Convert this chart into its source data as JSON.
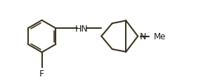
{
  "bg_color": "#ffffff",
  "bond_color": "#3c3520",
  "text_color": "#1a1a1a",
  "fig_width": 3.06,
  "fig_height": 1.15,
  "dpi": 100,
  "F_label": "F",
  "HN_label": "HN",
  "N_label": "N",
  "Me_label": "Me",
  "xlim": [
    0,
    10
  ],
  "ylim": [
    0,
    3.75
  ]
}
